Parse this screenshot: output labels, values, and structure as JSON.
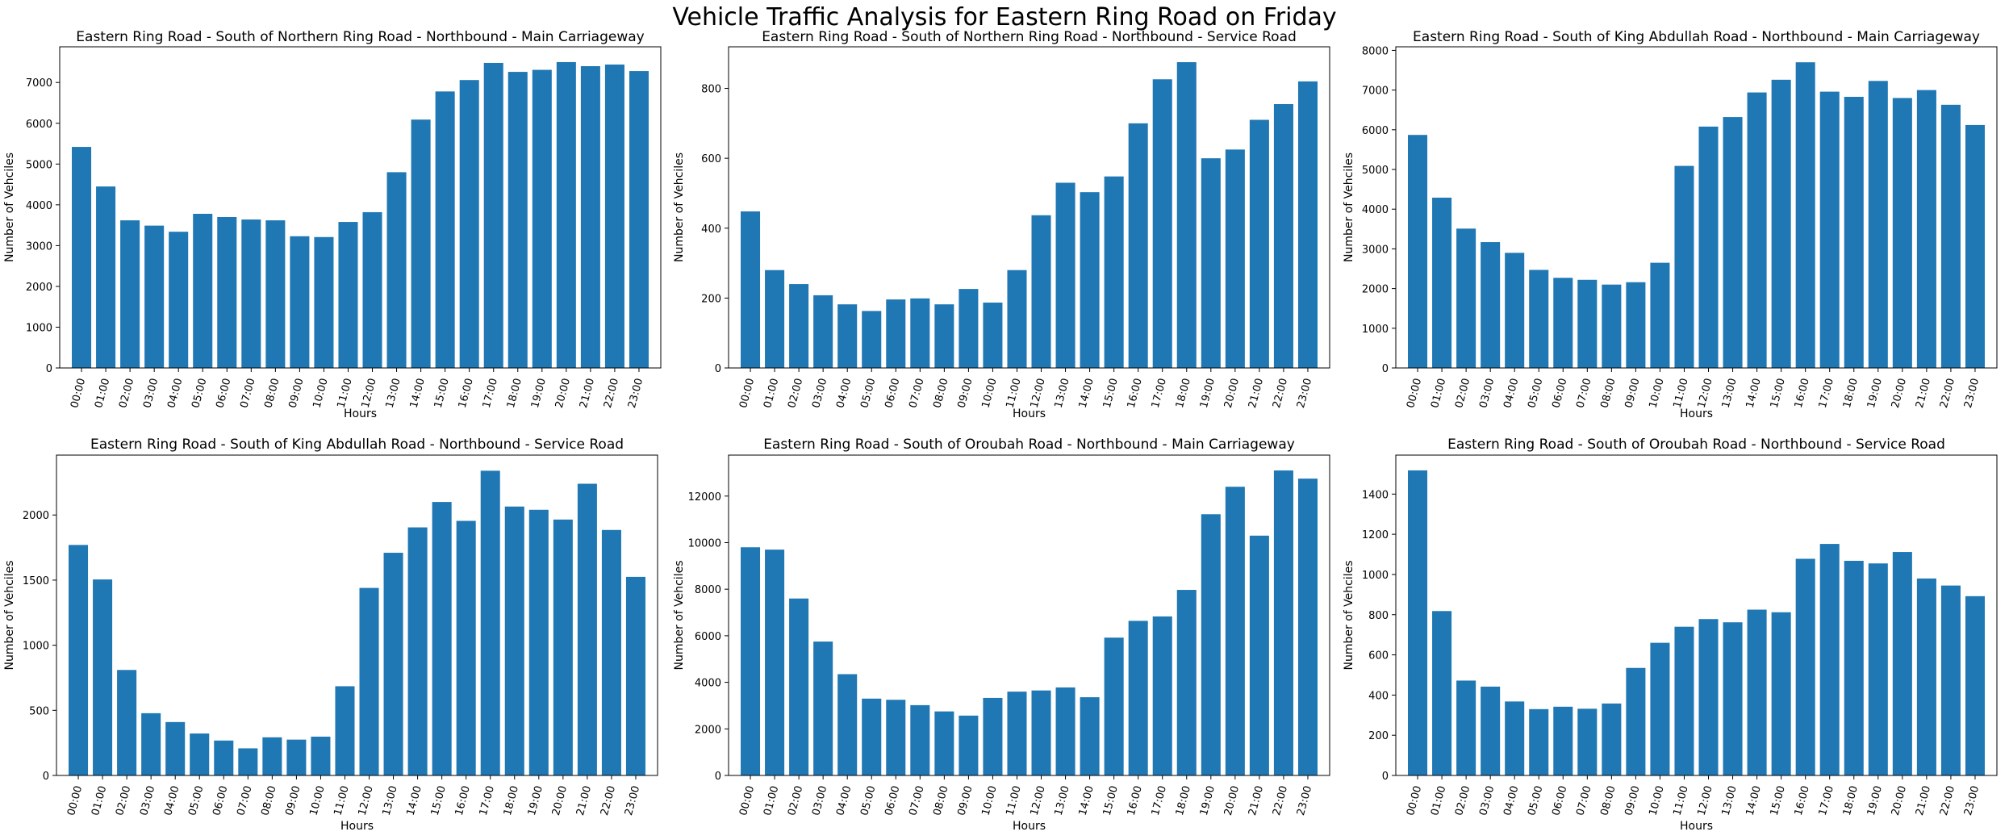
{
  "figure": {
    "suptitle": "Vehicle Traffic Analysis for Eastern Ring Road on Friday",
    "bar_color": "#1f77b4"
  },
  "chart_data": [
    {
      "type": "bar",
      "title": "Eastern Ring Road - South of Northern Ring Road - Northbound - Main Carriageway",
      "xlabel": "Hours",
      "ylabel": "Number of Vehciles",
      "categories": [
        "00:00",
        "01:00",
        "02:00",
        "03:00",
        "04:00",
        "05:00",
        "06:00",
        "07:00",
        "08:00",
        "09:00",
        "10:00",
        "11:00",
        "12:00",
        "13:00",
        "14:00",
        "15:00",
        "16:00",
        "17:00",
        "18:00",
        "19:00",
        "20:00",
        "21:00",
        "22:00",
        "23:00"
      ],
      "values": [
        5420,
        4450,
        3620,
        3490,
        3340,
        3780,
        3700,
        3640,
        3620,
        3230,
        3210,
        3580,
        3820,
        4800,
        6090,
        6780,
        7060,
        7480,
        7260,
        7310,
        7500,
        7400,
        7440,
        7280
      ],
      "ylim": [
        0,
        7875
      ],
      "yticks": [
        0,
        1000,
        2000,
        3000,
        4000,
        5000,
        6000,
        7000
      ],
      "grid": false
    },
    {
      "type": "bar",
      "title": "Eastern Ring Road - South of Northern Ring Road - Northbound - Service Road",
      "xlabel": "Hours",
      "ylabel": "Number of Vehciles",
      "categories": [
        "00:00",
        "01:00",
        "02:00",
        "03:00",
        "04:00",
        "05:00",
        "06:00",
        "07:00",
        "08:00",
        "09:00",
        "10:00",
        "11:00",
        "12:00",
        "13:00",
        "14:00",
        "15:00",
        "16:00",
        "17:00",
        "18:00",
        "19:00",
        "20:00",
        "21:00",
        "22:00",
        "23:00"
      ],
      "values": [
        448,
        280,
        240,
        208,
        182,
        163,
        196,
        199,
        182,
        226,
        187,
        280,
        437,
        530,
        503,
        548,
        700,
        826,
        875,
        600,
        625,
        710,
        755,
        820
      ],
      "ylim": [
        0,
        919
      ],
      "yticks": [
        0,
        200,
        400,
        600,
        800
      ],
      "grid": false
    },
    {
      "type": "bar",
      "title": "Eastern Ring Road - South of King Abdullah Road - Northbound - Main Carriageway",
      "xlabel": "Hours",
      "ylabel": "Number of Vehciles",
      "categories": [
        "00:00",
        "01:00",
        "02:00",
        "03:00",
        "04:00",
        "05:00",
        "06:00",
        "07:00",
        "08:00",
        "09:00",
        "10:00",
        "11:00",
        "12:00",
        "13:00",
        "14:00",
        "15:00",
        "16:00",
        "17:00",
        "18:00",
        "19:00",
        "20:00",
        "21:00",
        "22:00",
        "23:00"
      ],
      "values": [
        5870,
        4290,
        3510,
        3170,
        2900,
        2470,
        2270,
        2220,
        2100,
        2160,
        2650,
        5090,
        6080,
        6320,
        6940,
        7260,
        7700,
        6960,
        6830,
        7230,
        6800,
        7000,
        6630,
        6120
      ],
      "ylim": [
        0,
        8090
      ],
      "yticks": [
        0,
        1000,
        2000,
        3000,
        4000,
        5000,
        6000,
        7000,
        8000
      ],
      "grid": false
    },
    {
      "type": "bar",
      "title": "Eastern Ring Road - South of King Abdullah Road - Northbound - Service Road",
      "xlabel": "Hours",
      "ylabel": "Number of Vehciles",
      "categories": [
        "00:00",
        "01:00",
        "02:00",
        "03:00",
        "04:00",
        "05:00",
        "06:00",
        "07:00",
        "08:00",
        "09:00",
        "10:00",
        "11:00",
        "12:00",
        "13:00",
        "14:00",
        "15:00",
        "16:00",
        "17:00",
        "18:00",
        "19:00",
        "20:00",
        "21:00",
        "22:00",
        "23:00"
      ],
      "values": [
        1770,
        1505,
        810,
        478,
        410,
        322,
        268,
        208,
        293,
        275,
        298,
        685,
        1440,
        1710,
        1905,
        2100,
        1955,
        2340,
        2065,
        2040,
        1965,
        2240,
        1885,
        1525
      ],
      "ylim": [
        0,
        2460
      ],
      "yticks": [
        0,
        500,
        1000,
        1500,
        2000
      ],
      "grid": false
    },
    {
      "type": "bar",
      "title": "Eastern Ring Road - South of Oroubah Road - Northbound - Main Carriageway",
      "xlabel": "Hours",
      "ylabel": "Number of Vehciles",
      "categories": [
        "00:00",
        "01:00",
        "02:00",
        "03:00",
        "04:00",
        "05:00",
        "06:00",
        "07:00",
        "08:00",
        "09:00",
        "10:00",
        "11:00",
        "12:00",
        "13:00",
        "14:00",
        "15:00",
        "16:00",
        "17:00",
        "18:00",
        "19:00",
        "20:00",
        "21:00",
        "22:00",
        "23:00"
      ],
      "values": [
        9800,
        9700,
        7600,
        5750,
        4350,
        3300,
        3250,
        3020,
        2750,
        2570,
        3330,
        3600,
        3650,
        3780,
        3360,
        5920,
        6640,
        6830,
        7970,
        11220,
        12400,
        10300,
        13100,
        12750
      ],
      "ylim": [
        0,
        13760
      ],
      "yticks": [
        0,
        2000,
        4000,
        6000,
        8000,
        10000,
        12000
      ],
      "grid": false
    },
    {
      "type": "bar",
      "title": "Eastern Ring Road - South of Oroubah Road - Northbound - Service Road",
      "xlabel": "Hours",
      "ylabel": "Number of Vehciles",
      "categories": [
        "00:00",
        "01:00",
        "02:00",
        "03:00",
        "04:00",
        "05:00",
        "06:00",
        "07:00",
        "08:00",
        "09:00",
        "10:00",
        "11:00",
        "12:00",
        "13:00",
        "14:00",
        "15:00",
        "16:00",
        "17:00",
        "18:00",
        "19:00",
        "20:00",
        "21:00",
        "22:00",
        "23:00"
      ],
      "values": [
        1518,
        818,
        472,
        442,
        368,
        330,
        342,
        332,
        358,
        535,
        660,
        740,
        778,
        762,
        825,
        812,
        1078,
        1152,
        1068,
        1055,
        1112,
        980,
        945,
        892
      ],
      "ylim": [
        0,
        1594
      ],
      "yticks": [
        0,
        200,
        400,
        600,
        800,
        1000,
        1200,
        1400
      ],
      "grid": false
    }
  ]
}
